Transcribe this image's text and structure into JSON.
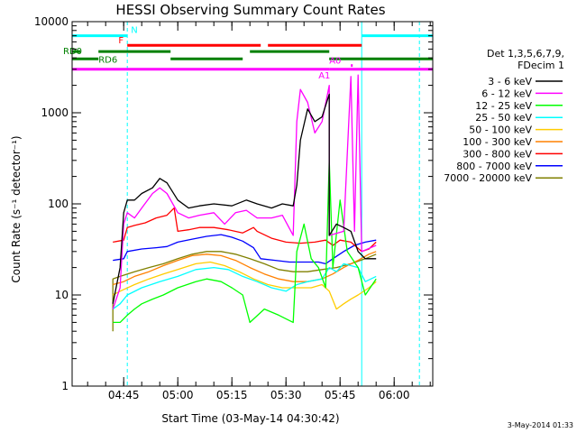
{
  "chart_data": {
    "type": "line",
    "title": "HESSI Observing Summary Count Rates",
    "xlabel": "Start Time (03-May-14 04:30:42)",
    "ylabel": "Count Rate (s⁻¹ detector⁻¹)",
    "y_scale": "log",
    "ylim": [
      1,
      10000
    ],
    "xlim": [
      "04:30:42",
      "06:10:42"
    ],
    "x_ticks": [
      "04:45",
      "05:00",
      "05:15",
      "05:30",
      "05:45",
      "06:00"
    ],
    "y_ticks": [
      "1",
      "10",
      "100",
      "1000",
      "10000"
    ],
    "grid": false,
    "legend_position": "right",
    "legend_header": [
      "Det 1,3,5,6,7,9,",
      "FDecim 1"
    ],
    "series": [
      {
        "name": "3 - 6 keV",
        "color": "#000000",
        "points": [
          [
            "04:42",
            8
          ],
          [
            "04:44",
            20
          ],
          [
            "04:45",
            80
          ],
          [
            "04:46",
            110
          ],
          [
            "04:48",
            110
          ],
          [
            "04:50",
            130
          ],
          [
            "04:53",
            150
          ],
          [
            "04:55",
            190
          ],
          [
            "04:57",
            170
          ],
          [
            "05:00",
            110
          ],
          [
            "05:03",
            90
          ],
          [
            "05:06",
            95
          ],
          [
            "05:10",
            100
          ],
          [
            "05:15",
            95
          ],
          [
            "05:19",
            110
          ],
          [
            "05:22",
            100
          ],
          [
            "05:26",
            90
          ],
          [
            "05:29",
            100
          ],
          [
            "05:32",
            95
          ],
          [
            "05:33",
            160
          ],
          [
            "05:34",
            500
          ],
          [
            "05:36",
            1100
          ],
          [
            "05:38",
            800
          ],
          [
            "05:40",
            900
          ],
          [
            "05:42",
            1600
          ],
          [
            "05:42",
            45
          ],
          [
            "05:44",
            60
          ],
          [
            "05:46",
            55
          ],
          [
            "05:48",
            50
          ],
          [
            "05:50",
            30
          ],
          [
            "05:52",
            25
          ],
          [
            "05:55",
            25
          ]
        ]
      },
      {
        "name": "6 - 12 keV",
        "color": "#ff00ff",
        "points": [
          [
            "04:42",
            7
          ],
          [
            "04:44",
            12
          ],
          [
            "04:45",
            60
          ],
          [
            "04:46",
            80
          ],
          [
            "04:48",
            70
          ],
          [
            "04:50",
            90
          ],
          [
            "04:53",
            130
          ],
          [
            "04:55",
            150
          ],
          [
            "04:57",
            130
          ],
          [
            "05:00",
            80
          ],
          [
            "05:03",
            70
          ],
          [
            "05:06",
            75
          ],
          [
            "05:10",
            80
          ],
          [
            "05:13",
            60
          ],
          [
            "05:16",
            80
          ],
          [
            "05:19",
            85
          ],
          [
            "05:22",
            70
          ],
          [
            "05:26",
            70
          ],
          [
            "05:29",
            75
          ],
          [
            "05:32",
            45
          ],
          [
            "05:33",
            800
          ],
          [
            "05:34",
            1800
          ],
          [
            "05:36",
            1300
          ],
          [
            "05:38",
            600
          ],
          [
            "05:40",
            800
          ],
          [
            "05:42",
            2000
          ],
          [
            "05:42",
            45
          ],
          [
            "05:46",
            50
          ],
          [
            "05:48",
            2500
          ],
          [
            "05:49",
            50
          ],
          [
            "05:50",
            2600
          ],
          [
            "05:51",
            30
          ],
          [
            "05:55",
            35
          ]
        ]
      },
      {
        "name": "12 - 25 keV",
        "color": "#00ff00",
        "points": [
          [
            "04:42",
            5
          ],
          [
            "04:44",
            5
          ],
          [
            "04:46",
            6
          ],
          [
            "04:48",
            7
          ],
          [
            "04:50",
            8
          ],
          [
            "04:53",
            9
          ],
          [
            "04:56",
            10
          ],
          [
            "05:00",
            12
          ],
          [
            "05:05",
            14
          ],
          [
            "05:08",
            15
          ],
          [
            "05:12",
            14
          ],
          [
            "05:15",
            12
          ],
          [
            "05:18",
            10
          ],
          [
            "05:20",
            5
          ],
          [
            "05:24",
            7
          ],
          [
            "05:28",
            6
          ],
          [
            "05:32",
            5
          ],
          [
            "05:33",
            30
          ],
          [
            "05:35",
            60
          ],
          [
            "05:37",
            25
          ],
          [
            "05:39",
            20
          ],
          [
            "05:41",
            12
          ],
          [
            "05:42",
            300
          ],
          [
            "05:43",
            20
          ],
          [
            "05:45",
            110
          ],
          [
            "05:47",
            30
          ],
          [
            "05:50",
            20
          ],
          [
            "05:52",
            10
          ],
          [
            "05:55",
            15
          ]
        ]
      },
      {
        "name": "25 - 50 keV",
        "color": "#00ffff",
        "points": [
          [
            "04:42",
            7
          ],
          [
            "04:44",
            8
          ],
          [
            "04:46",
            10
          ],
          [
            "04:50",
            12
          ],
          [
            "04:55",
            14
          ],
          [
            "05:00",
            16
          ],
          [
            "05:05",
            19
          ],
          [
            "05:10",
            20
          ],
          [
            "05:14",
            19
          ],
          [
            "05:18",
            16
          ],
          [
            "05:22",
            14
          ],
          [
            "05:26",
            12
          ],
          [
            "05:30",
            11
          ],
          [
            "05:33",
            13
          ],
          [
            "05:36",
            14
          ],
          [
            "05:40",
            15
          ],
          [
            "05:42",
            20
          ],
          [
            "05:44",
            18
          ],
          [
            "05:46",
            22
          ],
          [
            "05:50",
            20
          ],
          [
            "05:52",
            14
          ],
          [
            "05:55",
            16
          ]
        ]
      },
      {
        "name": "50 - 100 keV",
        "color": "#ffcc00",
        "points": [
          [
            "04:42",
            10
          ],
          [
            "04:44",
            11
          ],
          [
            "04:48",
            13
          ],
          [
            "04:52",
            15
          ],
          [
            "04:56",
            17
          ],
          [
            "05:00",
            19
          ],
          [
            "05:05",
            22
          ],
          [
            "05:09",
            23
          ],
          [
            "05:13",
            21
          ],
          [
            "05:17",
            18
          ],
          [
            "05:21",
            15
          ],
          [
            "05:25",
            13
          ],
          [
            "05:29",
            12
          ],
          [
            "05:33",
            12
          ],
          [
            "05:37",
            12
          ],
          [
            "05:40",
            13
          ],
          [
            "05:42",
            11
          ],
          [
            "05:44",
            7
          ],
          [
            "05:46",
            8
          ],
          [
            "05:48",
            9
          ],
          [
            "05:50",
            10
          ],
          [
            "05:53",
            12
          ],
          [
            "05:55",
            14
          ]
        ]
      },
      {
        "name": "100 - 300 keV",
        "color": "#ff8000",
        "points": [
          [
            "04:42",
            13
          ],
          [
            "04:45",
            14
          ],
          [
            "04:48",
            16
          ],
          [
            "04:52",
            18
          ],
          [
            "04:56",
            21
          ],
          [
            "05:00",
            24
          ],
          [
            "05:04",
            27
          ],
          [
            "05:08",
            28
          ],
          [
            "05:12",
            27
          ],
          [
            "05:16",
            24
          ],
          [
            "05:20",
            20
          ],
          [
            "05:24",
            17
          ],
          [
            "05:28",
            15
          ],
          [
            "05:32",
            14
          ],
          [
            "05:36",
            14
          ],
          [
            "05:40",
            15
          ],
          [
            "05:43",
            17
          ],
          [
            "05:46",
            20
          ],
          [
            "05:50",
            24
          ],
          [
            "05:53",
            28
          ],
          [
            "05:55",
            30
          ]
        ]
      },
      {
        "name": "300 - 800 keV",
        "color": "#ff0000",
        "points": [
          [
            "04:42",
            38
          ],
          [
            "04:45",
            40
          ],
          [
            "04:46",
            55
          ],
          [
            "04:48",
            58
          ],
          [
            "04:51",
            62
          ],
          [
            "04:54",
            70
          ],
          [
            "04:57",
            75
          ],
          [
            "04:59",
            90
          ],
          [
            "05:00",
            50
          ],
          [
            "05:03",
            52
          ],
          [
            "05:06",
            55
          ],
          [
            "05:10",
            55
          ],
          [
            "05:14",
            52
          ],
          [
            "05:18",
            48
          ],
          [
            "05:21",
            55
          ],
          [
            "05:22",
            50
          ],
          [
            "05:26",
            42
          ],
          [
            "05:30",
            38
          ],
          [
            "05:34",
            37
          ],
          [
            "05:38",
            38
          ],
          [
            "05:41",
            40
          ],
          [
            "05:43",
            35
          ],
          [
            "05:45",
            40
          ],
          [
            "05:48",
            38
          ],
          [
            "05:51",
            30
          ],
          [
            "05:53",
            32
          ],
          [
            "05:55",
            38
          ]
        ]
      },
      {
        "name": "800 - 7000 keV",
        "color": "#0000ff",
        "points": [
          [
            "04:42",
            24
          ],
          [
            "04:45",
            25
          ],
          [
            "04:46",
            30
          ],
          [
            "04:50",
            32
          ],
          [
            "04:54",
            33
          ],
          [
            "04:57",
            34
          ],
          [
            "05:00",
            38
          ],
          [
            "05:04",
            41
          ],
          [
            "05:08",
            44
          ],
          [
            "05:12",
            46
          ],
          [
            "05:15",
            43
          ],
          [
            "05:18",
            39
          ],
          [
            "05:21",
            33
          ],
          [
            "05:23",
            25
          ],
          [
            "05:27",
            24
          ],
          [
            "05:31",
            23
          ],
          [
            "05:35",
            23
          ],
          [
            "05:39",
            23
          ],
          [
            "05:41",
            22
          ],
          [
            "05:43",
            25
          ],
          [
            "05:46",
            30
          ],
          [
            "05:49",
            35
          ],
          [
            "05:52",
            38
          ],
          [
            "05:55",
            40
          ]
        ]
      },
      {
        "name": "7000 - 20000 keV",
        "color": "#808000",
        "points": [
          [
            "04:42",
            4
          ],
          [
            "04:42",
            15
          ],
          [
            "04:44",
            16
          ],
          [
            "04:48",
            18
          ],
          [
            "04:52",
            20
          ],
          [
            "04:56",
            22
          ],
          [
            "05:00",
            25
          ],
          [
            "05:04",
            28
          ],
          [
            "05:08",
            30
          ],
          [
            "05:12",
            30
          ],
          [
            "05:16",
            28
          ],
          [
            "05:20",
            25
          ],
          [
            "05:24",
            22
          ],
          [
            "05:28",
            19
          ],
          [
            "05:32",
            18
          ],
          [
            "05:36",
            18
          ],
          [
            "05:40",
            19
          ],
          [
            "05:44",
            20
          ],
          [
            "05:48",
            22
          ],
          [
            "05:52",
            25
          ],
          [
            "05:55",
            28
          ]
        ]
      }
    ],
    "flag_bars": [
      {
        "label": "N",
        "color": "#00ffff",
        "segments": [
          [
            "04:30:42",
            "04:46"
          ],
          [
            "05:51",
            "06:10:42"
          ]
        ],
        "level": 7000
      },
      {
        "label": "F",
        "color": "#ff0000",
        "segments": [
          [
            "04:46",
            "05:23"
          ],
          [
            "05:25",
            "05:51"
          ]
        ],
        "level": 5500
      },
      {
        "label": "RD0",
        "color": "#008000",
        "segments": [
          [
            "04:30:42",
            "04:33"
          ],
          [
            "04:38",
            "04:58"
          ],
          [
            "05:20",
            "05:42"
          ]
        ],
        "level": 4700
      },
      {
        "label": "RD6",
        "color": "#008000",
        "segments": [
          [
            "04:30:42",
            "04:38"
          ],
          [
            "04:58",
            "05:18"
          ],
          [
            "05:42",
            "06:10:42"
          ]
        ],
        "level": 3900
      },
      {
        "label": "A0",
        "color": "#ff00ff",
        "segments": [
          [
            "05:48",
            "05:48:30"
          ]
        ],
        "level": 3300
      },
      {
        "label": "A1",
        "color": "#ff00ff",
        "segments": [
          [
            "04:30:42",
            "05:42"
          ],
          [
            "05:42",
            "06:10:42"
          ]
        ],
        "level": 3000
      }
    ],
    "vertical_markers": [
      {
        "time": "04:46",
        "color": "#00ffff",
        "style": "dashed"
      },
      {
        "time": "05:51",
        "color": "#00ffff",
        "style": "solid"
      },
      {
        "time": "06:07",
        "color": "#00ffff",
        "style": "dashed"
      },
      {
        "time": "04:30:42",
        "color": "#00ffff",
        "style": "solid"
      }
    ]
  },
  "footer": {
    "timestamp": "3-May-2014 01:33"
  }
}
